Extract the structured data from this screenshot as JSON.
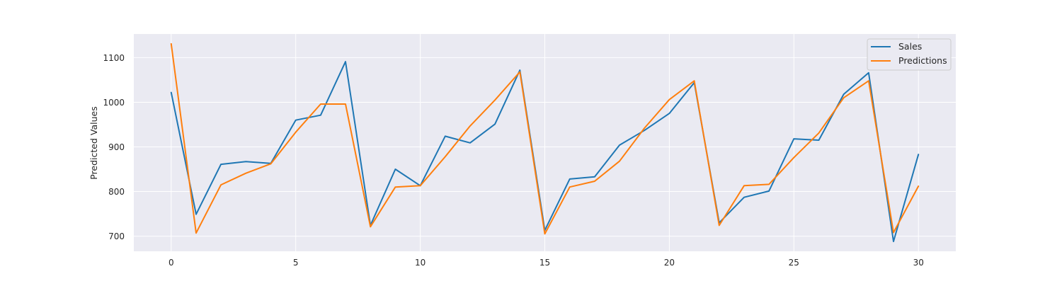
{
  "chart_data": {
    "type": "line",
    "title": "",
    "xlabel": "",
    "ylabel": "Predicted Values",
    "x": [
      0,
      1,
      2,
      3,
      4,
      5,
      6,
      7,
      8,
      9,
      10,
      11,
      12,
      13,
      14,
      15,
      16,
      17,
      18,
      19,
      20,
      21,
      22,
      23,
      24,
      25,
      26,
      27,
      28,
      29,
      30
    ],
    "xlim": [
      -1.5,
      31.5
    ],
    "ylim": [
      666,
      1153
    ],
    "xticks": [
      0,
      5,
      10,
      15,
      20,
      25,
      30
    ],
    "yticks": [
      700,
      800,
      900,
      1000,
      1100
    ],
    "grid": true,
    "legend_position": "top-right",
    "series": [
      {
        "name": "Sales",
        "color": "#1f77b4",
        "values": [
          1022,
          749,
          861,
          867,
          863,
          960,
          971,
          1091,
          724,
          850,
          813,
          924,
          909,
          951,
          1072,
          713,
          828,
          833,
          904,
          937,
          975,
          1044,
          730,
          787,
          801,
          918,
          915,
          1018,
          1066,
          688,
          883
        ]
      },
      {
        "name": "Predictions",
        "color": "#ff7f0e",
        "values": [
          1131,
          707,
          815,
          841,
          862,
          933,
          996,
          996,
          721,
          810,
          813,
          878,
          947,
          1005,
          1068,
          705,
          810,
          823,
          868,
          942,
          1006,
          1048,
          724,
          813,
          816,
          876,
          931,
          1010,
          1048,
          708,
          812
        ]
      }
    ]
  }
}
